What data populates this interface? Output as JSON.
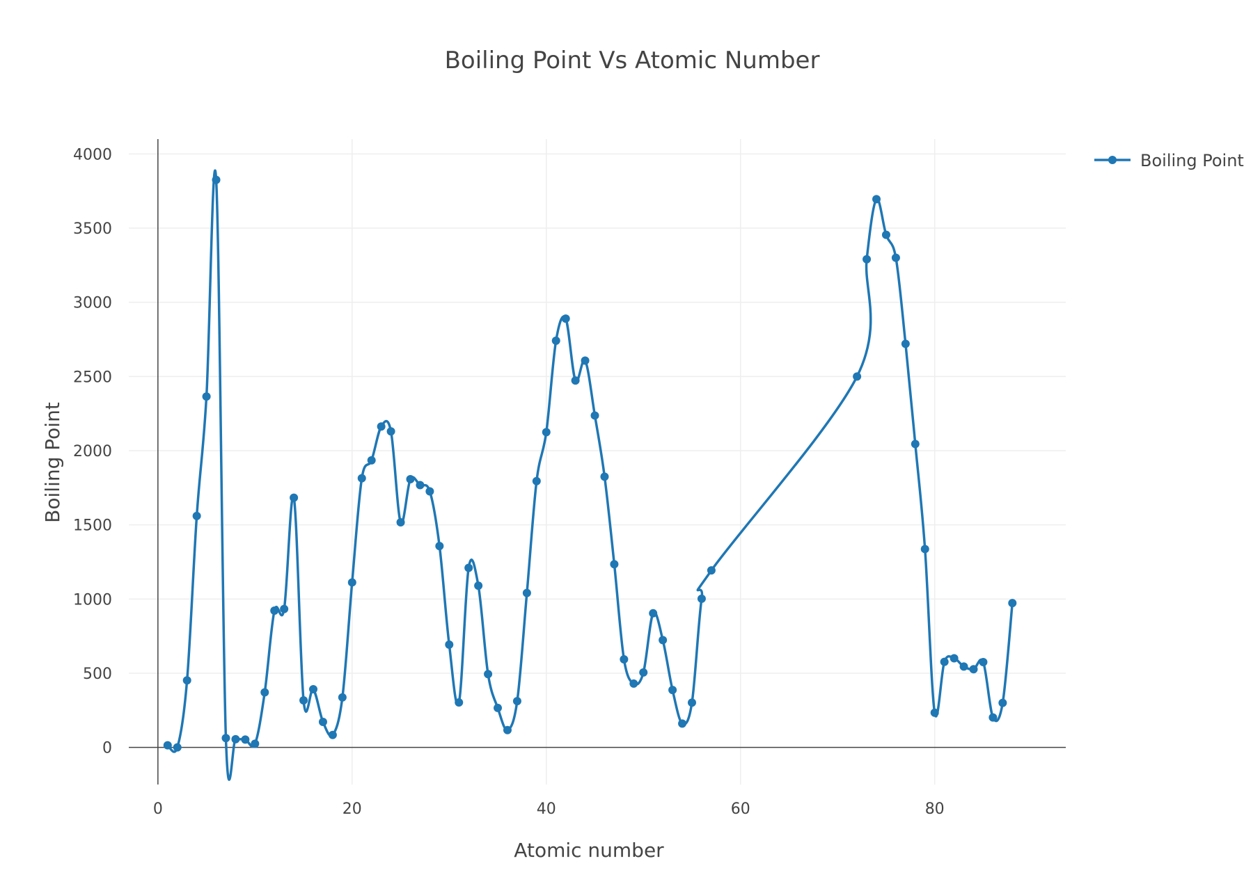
{
  "chart_data": {
    "type": "line",
    "title": "Boiling Point Vs Atomic Number",
    "xlabel": "Atomic number",
    "ylabel": "Boiling Point",
    "xlim": [
      -3,
      93.5
    ],
    "ylim": [
      -250,
      4100
    ],
    "x_ticks": [
      0,
      20,
      40,
      60,
      80
    ],
    "y_ticks": [
      0,
      500,
      1000,
      1500,
      2000,
      2500,
      3000,
      3500,
      4000
    ],
    "grid": true,
    "legend_position": "top-right",
    "line_shape": "spline",
    "color": "#1f77b4",
    "series": [
      {
        "name": "Boiling Point",
        "x": [
          1,
          2,
          3,
          4,
          5,
          6,
          7,
          8,
          9,
          10,
          11,
          12,
          13,
          14,
          15,
          16,
          17,
          18,
          19,
          20,
          21,
          22,
          23,
          24,
          25,
          26,
          27,
          28,
          29,
          30,
          31,
          32,
          33,
          34,
          35,
          36,
          37,
          38,
          39,
          40,
          41,
          42,
          43,
          44,
          45,
          46,
          47,
          48,
          49,
          50,
          51,
          52,
          53,
          54,
          55,
          56,
          57,
          72,
          73,
          74,
          75,
          76,
          77,
          78,
          79,
          80,
          81,
          82,
          83,
          84,
          85,
          86,
          87,
          88
        ],
        "y": [
          14,
          0,
          452,
          1560,
          2365,
          3825,
          63,
          55,
          53,
          25,
          371,
          922,
          933,
          1683,
          317,
          392,
          172,
          84,
          337,
          1112,
          1814,
          1935,
          2163,
          2130,
          1517,
          1808,
          1768,
          1726,
          1357,
          693,
          303,
          1210,
          1090,
          494,
          266,
          117,
          312,
          1041,
          1795,
          2125,
          2741,
          2890,
          2473,
          2607,
          2237,
          1825,
          1235,
          594,
          430,
          505,
          904,
          723,
          387,
          161,
          302,
          1002,
          1193,
          2500,
          3290,
          3695,
          3455,
          3300,
          2720,
          2045,
          1337,
          234,
          577,
          601,
          545,
          527,
          575,
          202,
          300,
          973
        ]
      }
    ]
  }
}
